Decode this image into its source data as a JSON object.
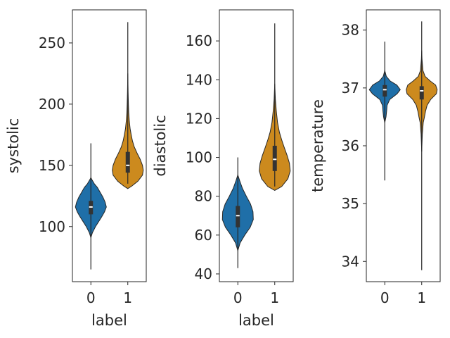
{
  "chart_data": [
    {
      "type": "violin",
      "xlabel": "label",
      "ylabel": "systolic",
      "ylim": [
        55,
        277
      ],
      "yticks": [
        100,
        150,
        200,
        250
      ],
      "categories": [
        "0",
        "1"
      ],
      "colors": [
        "#1f6fa8",
        "#cc8a1e"
      ],
      "violins": [
        {
          "category": "0",
          "min": 65,
          "q1": 110,
          "median": 116,
          "q3": 121,
          "max": 168,
          "profile": [
            [
              91,
              0
            ],
            [
              95,
              0.1
            ],
            [
              100,
              0.3
            ],
            [
              104,
              0.5
            ],
            [
              108,
              0.7
            ],
            [
              112,
              0.88
            ],
            [
              116,
              1.0
            ],
            [
              120,
              0.92
            ],
            [
              124,
              0.78
            ],
            [
              128,
              0.6
            ],
            [
              132,
              0.42
            ],
            [
              135,
              0.22
            ],
            [
              138,
              0.08
            ],
            [
              140,
              0
            ]
          ]
        },
        {
          "category": "1",
          "min": 135,
          "q1": 144,
          "median": 150,
          "q3": 161,
          "max": 267,
          "profile": [
            [
              131,
              0
            ],
            [
              133,
              0.25
            ],
            [
              137,
              0.65
            ],
            [
              142,
              0.95
            ],
            [
              146,
              1.0
            ],
            [
              150,
              0.95
            ],
            [
              155,
              0.8
            ],
            [
              160,
              0.6
            ],
            [
              165,
              0.42
            ],
            [
              170,
              0.3
            ],
            [
              175,
              0.22
            ],
            [
              180,
              0.15
            ],
            [
              186,
              0.1
            ],
            [
              193,
              0.06
            ],
            [
              200,
              0.04
            ],
            [
              210,
              0.02
            ],
            [
              225,
              0
            ]
          ]
        }
      ]
    },
    {
      "type": "violin",
      "xlabel": "label",
      "ylabel": "diastolic",
      "ylim": [
        36,
        176
      ],
      "yticks": [
        40,
        60,
        80,
        100,
        120,
        140,
        160
      ],
      "categories": [
        "0",
        "1"
      ],
      "colors": [
        "#1f6fa8",
        "#cc8a1e"
      ],
      "violins": [
        {
          "category": "0",
          "min": 43,
          "q1": 64,
          "median": 70,
          "q3": 75,
          "max": 100,
          "profile": [
            [
              52,
              0
            ],
            [
              56,
              0.15
            ],
            [
              60,
              0.45
            ],
            [
              64,
              0.8
            ],
            [
              68,
              1.0
            ],
            [
              72,
              0.98
            ],
            [
              76,
              0.82
            ],
            [
              80,
              0.55
            ],
            [
              84,
              0.3
            ],
            [
              88,
              0.12
            ],
            [
              91,
              0
            ]
          ]
        },
        {
          "category": "1",
          "min": 85,
          "q1": 93,
          "median": 99,
          "q3": 106,
          "max": 169,
          "profile": [
            [
              83,
              0
            ],
            [
              85,
              0.45
            ],
            [
              89,
              0.85
            ],
            [
              93,
              1.0
            ],
            [
              97,
              0.95
            ],
            [
              101,
              0.8
            ],
            [
              105,
              0.62
            ],
            [
              109,
              0.45
            ],
            [
              113,
              0.3
            ],
            [
              118,
              0.18
            ],
            [
              124,
              0.1
            ],
            [
              130,
              0.04
            ],
            [
              138,
              0
            ]
          ]
        }
      ]
    },
    {
      "type": "violin",
      "xlabel": "",
      "ylabel": "temperature",
      "ylim": [
        33.65,
        38.35
      ],
      "yticks": [
        34,
        35,
        36,
        37,
        38
      ],
      "categories": [
        "0",
        "1"
      ],
      "colors": [
        "#1f6fa8",
        "#cc8a1e"
      ],
      "violins": [
        {
          "category": "0",
          "min": 35.4,
          "q1": 36.85,
          "median": 36.97,
          "q3": 37.05,
          "max": 37.8,
          "profile": [
            [
              36.4,
              0
            ],
            [
              36.5,
              0.08
            ],
            [
              36.6,
              0.12
            ],
            [
              36.7,
              0.15
            ],
            [
              36.8,
              0.32
            ],
            [
              36.9,
              0.8
            ],
            [
              36.97,
              1.0
            ],
            [
              37.05,
              0.78
            ],
            [
              37.12,
              0.35
            ],
            [
              37.2,
              0.1
            ],
            [
              37.3,
              0
            ]
          ]
        },
        {
          "category": "1",
          "min": 33.85,
          "q1": 36.8,
          "median": 36.95,
          "q3": 37.03,
          "max": 38.15,
          "profile": [
            [
              35.9,
              0
            ],
            [
              36.2,
              0.04
            ],
            [
              36.4,
              0.1
            ],
            [
              36.5,
              0.18
            ],
            [
              36.6,
              0.25
            ],
            [
              36.7,
              0.35
            ],
            [
              36.8,
              0.58
            ],
            [
              36.9,
              0.95
            ],
            [
              36.97,
              1.0
            ],
            [
              37.05,
              0.9
            ],
            [
              37.12,
              0.55
            ],
            [
              37.2,
              0.22
            ],
            [
              37.3,
              0.08
            ],
            [
              37.5,
              0.02
            ],
            [
              37.65,
              0
            ]
          ]
        }
      ]
    }
  ]
}
